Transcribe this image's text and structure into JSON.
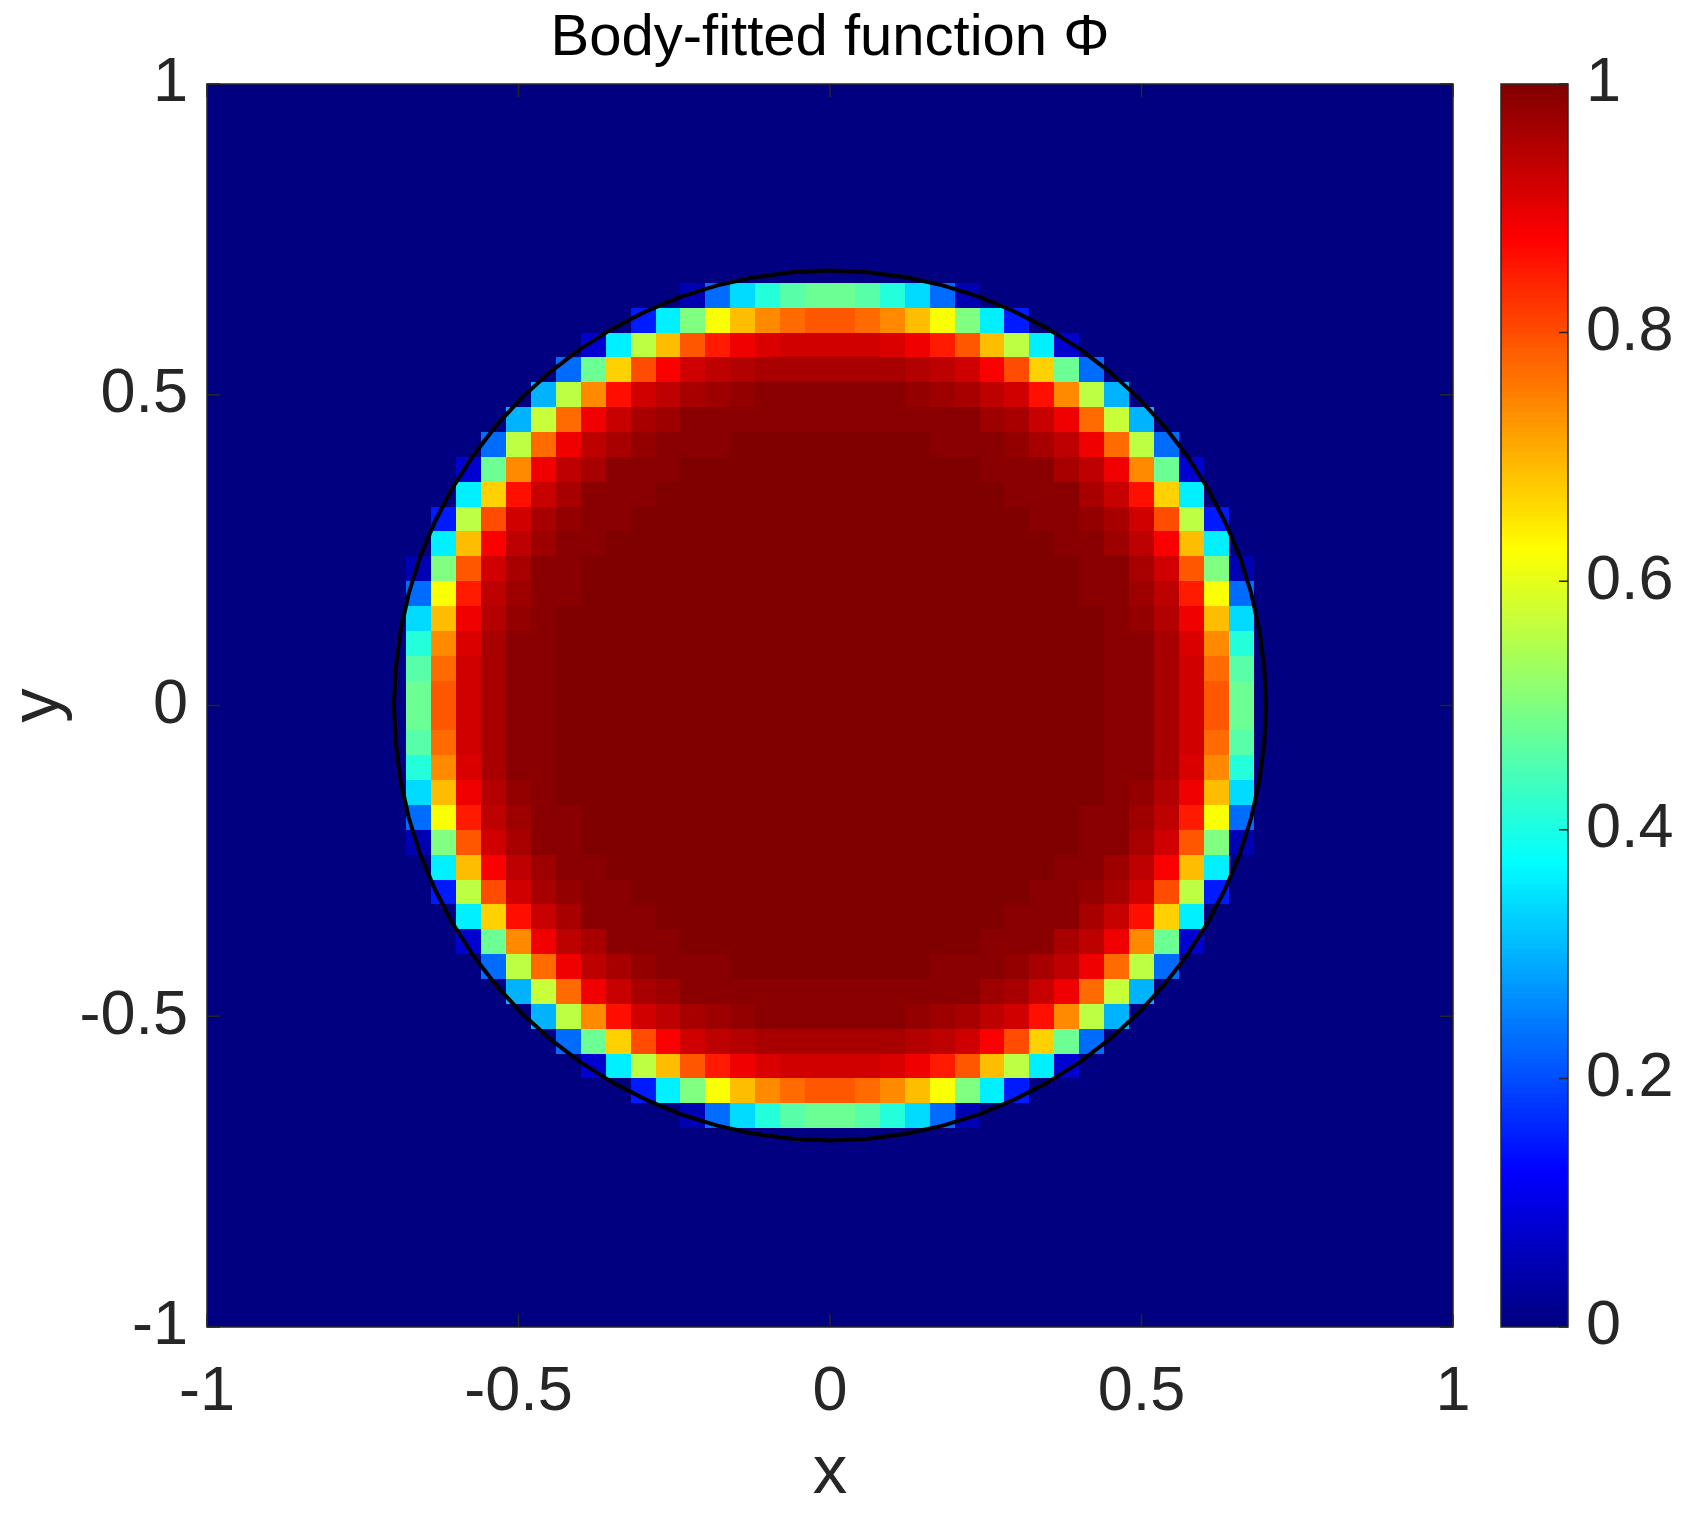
{
  "chart_data": {
    "type": "heatmap",
    "title": "Body-fitted function Φ",
    "xlabel": "x",
    "ylabel": "y",
    "xlim": [
      -1,
      1
    ],
    "ylim": [
      -1,
      1
    ],
    "xticks": [
      -1,
      -0.5,
      0,
      0.5,
      1
    ],
    "yticks": [
      -1,
      -0.5,
      0,
      0.5,
      1
    ],
    "clim": [
      0,
      1
    ],
    "cticks": [
      0,
      0.2,
      0.4,
      0.6,
      0.8,
      1
    ],
    "cells": [
      [
        0,
        0,
        0,
        0,
        0,
        0,
        0,
        0,
        0,
        0,
        0,
        0,
        0,
        0,
        0,
        0,
        0,
        0,
        0,
        0,
        0,
        0,
        0,
        0,
        0,
        0,
        0,
        0,
        0,
        0,
        0,
        0,
        0,
        0,
        0,
        0,
        0,
        0,
        0,
        0,
        0,
        0,
        0,
        0,
        0,
        0,
        0,
        0,
        0,
        0
      ],
      [
        0,
        0,
        0,
        0,
        0,
        0,
        0,
        0,
        0,
        0,
        0,
        0,
        0,
        0,
        0,
        0,
        0,
        0,
        0,
        0,
        0,
        0,
        0,
        0,
        0,
        0,
        0,
        0,
        0,
        0,
        0,
        0,
        0,
        0,
        0,
        0,
        0,
        0,
        0,
        0,
        0,
        0,
        0,
        0,
        0,
        0,
        0,
        0,
        0,
        0
      ],
      [
        0,
        0,
        0,
        0,
        0,
        0,
        0,
        0,
        0,
        0,
        0,
        0,
        0,
        0,
        0,
        0,
        0,
        0,
        0,
        0,
        0,
        0,
        0,
        0,
        0,
        0,
        0,
        0,
        0,
        0,
        0,
        0,
        0,
        0,
        0,
        0,
        0,
        0,
        0,
        0,
        0,
        0,
        0,
        0,
        0,
        0,
        0,
        0,
        0,
        0
      ],
      [
        0,
        0,
        0,
        0,
        0,
        0,
        0,
        0,
        0,
        0,
        0,
        0,
        0,
        0,
        0,
        0,
        0,
        0,
        0,
        0,
        0,
        0,
        0,
        0,
        0,
        0,
        0,
        0,
        0,
        0,
        0,
        0,
        0,
        0,
        0,
        0,
        0,
        0,
        0,
        0,
        0,
        0,
        0,
        0,
        0,
        0,
        0,
        0,
        0,
        0
      ],
      [
        0,
        0,
        0,
        0,
        0,
        0,
        0,
        0,
        0,
        0,
        0,
        0,
        0,
        0,
        0,
        0,
        0,
        0,
        0,
        0,
        0,
        0,
        0,
        0,
        0,
        0,
        0,
        0,
        0,
        0,
        0,
        0,
        0,
        0,
        0,
        0,
        0,
        0,
        0,
        0,
        0,
        0,
        0,
        0,
        0,
        0,
        0,
        0,
        0,
        0
      ],
      [
        0,
        0,
        0,
        0,
        0,
        0,
        0,
        0,
        0,
        0,
        0,
        0,
        0,
        0,
        0,
        0,
        0,
        0,
        0,
        0,
        0,
        0,
        0,
        0,
        0,
        0,
        0,
        0,
        0,
        0,
        0,
        0,
        0,
        0,
        0,
        0,
        0,
        0,
        0,
        0,
        0,
        0,
        0,
        0,
        0,
        0,
        0,
        0,
        0,
        0
      ],
      [
        0,
        0,
        0,
        0,
        0,
        0,
        0,
        0,
        0,
        0,
        0,
        0,
        0,
        0,
        0,
        0,
        0,
        0,
        0,
        0,
        0,
        0,
        0,
        0,
        0,
        0,
        0,
        0,
        0,
        0,
        0,
        0,
        0,
        0,
        0,
        0,
        0,
        0,
        0,
        0,
        0,
        0,
        0,
        0,
        0,
        0,
        0,
        0,
        0,
        0
      ],
      [
        0,
        0,
        0,
        0,
        0,
        0,
        0,
        0,
        0,
        0,
        0,
        0,
        0,
        0,
        0,
        0,
        0,
        0,
        0,
        0,
        0,
        0,
        0,
        0,
        0,
        0,
        0,
        0,
        0,
        0,
        0,
        0,
        0,
        0,
        0,
        0,
        0,
        0,
        0,
        0,
        0,
        0,
        0,
        0,
        0,
        0,
        0,
        0,
        0,
        0
      ],
      [
        0,
        0,
        0,
        0,
        0,
        0,
        0,
        0,
        0,
        0,
        0,
        0,
        0,
        0,
        0,
        0,
        0,
        0,
        0,
        0.05,
        0.23,
        0.34,
        0.41,
        0.46,
        0.48,
        0.48,
        0.46,
        0.41,
        0.34,
        0.23,
        0.05,
        0,
        0,
        0,
        0,
        0,
        0,
        0,
        0,
        0,
        0,
        0,
        0,
        0,
        0,
        0,
        0,
        0,
        0,
        0
      ],
      [
        0,
        0,
        0,
        0,
        0,
        0,
        0,
        0,
        0,
        0,
        0,
        0,
        0,
        0,
        0,
        0,
        0,
        0.15,
        0.36,
        0.5,
        0.62,
        0.69,
        0.74,
        0.77,
        0.79,
        0.79,
        0.77,
        0.74,
        0.69,
        0.62,
        0.5,
        0.36,
        0.15,
        0,
        0,
        0,
        0,
        0,
        0,
        0,
        0,
        0,
        0,
        0,
        0,
        0,
        0,
        0,
        0,
        0
      ],
      [
        0,
        0,
        0,
        0,
        0,
        0,
        0,
        0,
        0,
        0,
        0,
        0,
        0,
        0,
        0,
        0.08,
        0.36,
        0.56,
        0.69,
        0.79,
        0.85,
        0.89,
        0.91,
        0.92,
        0.92,
        0.92,
        0.92,
        0.91,
        0.89,
        0.85,
        0.79,
        0.69,
        0.56,
        0.36,
        0.08,
        0,
        0,
        0,
        0,
        0,
        0,
        0,
        0,
        0,
        0,
        0,
        0,
        0,
        0,
        0
      ],
      [
        0,
        0,
        0,
        0,
        0,
        0,
        0,
        0,
        0,
        0,
        0,
        0,
        0,
        0,
        0.23,
        0.48,
        0.67,
        0.8,
        0.88,
        0.92,
        0.94,
        0.95,
        0.96,
        0.96,
        0.96,
        0.96,
        0.96,
        0.96,
        0.95,
        0.94,
        0.92,
        0.88,
        0.8,
        0.67,
        0.48,
        0.23,
        0,
        0,
        0,
        0,
        0,
        0,
        0,
        0,
        0,
        0,
        0,
        0,
        0,
        0
      ],
      [
        0,
        0,
        0,
        0,
        0,
        0,
        0,
        0,
        0,
        0,
        0,
        0,
        0,
        0.3,
        0.56,
        0.74,
        0.86,
        0.92,
        0.94,
        0.96,
        0.97,
        0.98,
        0.99,
        0.99,
        0.99,
        0.99,
        0.99,
        0.99,
        0.98,
        0.97,
        0.96,
        0.94,
        0.92,
        0.86,
        0.74,
        0.56,
        0.3,
        0,
        0,
        0,
        0,
        0,
        0,
        0,
        0,
        0,
        0,
        0,
        0,
        0
      ],
      [
        0,
        0,
        0,
        0,
        0,
        0,
        0,
        0,
        0,
        0,
        0,
        0,
        0.3,
        0.57,
        0.77,
        0.89,
        0.93,
        0.96,
        0.97,
        0.99,
        0.99,
        0.99,
        0.99,
        0.99,
        0.99,
        0.99,
        0.99,
        0.99,
        0.99,
        0.99,
        0.99,
        0.97,
        0.96,
        0.93,
        0.89,
        0.77,
        0.57,
        0.3,
        0,
        0,
        0,
        0,
        0,
        0,
        0,
        0,
        0,
        0,
        0,
        0
      ],
      [
        0,
        0,
        0,
        0,
        0,
        0,
        0,
        0,
        0,
        0,
        0,
        0.23,
        0.56,
        0.77,
        0.89,
        0.94,
        0.96,
        0.98,
        0.99,
        0.99,
        0.99,
        1,
        1,
        1,
        1,
        1,
        1,
        1,
        1,
        0.99,
        0.99,
        0.99,
        0.98,
        0.96,
        0.94,
        0.89,
        0.77,
        0.56,
        0.23,
        0,
        0,
        0,
        0,
        0,
        0,
        0,
        0,
        0,
        0,
        0
      ],
      [
        0,
        0,
        0,
        0,
        0,
        0,
        0,
        0,
        0,
        0,
        0.08,
        0.48,
        0.74,
        0.89,
        0.94,
        0.96,
        0.99,
        0.99,
        0.99,
        1,
        1,
        1,
        1,
        1,
        1,
        1,
        1,
        1,
        1,
        1,
        1,
        0.99,
        0.99,
        0.99,
        0.96,
        0.94,
        0.89,
        0.74,
        0.48,
        0.08,
        0,
        0,
        0,
        0,
        0,
        0,
        0,
        0,
        0,
        0
      ],
      [
        0,
        0,
        0,
        0,
        0,
        0,
        0,
        0,
        0,
        0,
        0.36,
        0.67,
        0.86,
        0.93,
        0.96,
        0.99,
        0.99,
        0.99,
        1,
        1,
        1,
        1,
        1,
        1,
        1,
        1,
        1,
        1,
        1,
        1,
        1,
        1,
        0.99,
        0.99,
        0.99,
        0.96,
        0.93,
        0.86,
        0.67,
        0.36,
        0,
        0,
        0,
        0,
        0,
        0,
        0,
        0,
        0,
        0
      ],
      [
        0,
        0,
        0,
        0,
        0,
        0,
        0,
        0,
        0,
        0.15,
        0.56,
        0.8,
        0.92,
        0.96,
        0.98,
        0.99,
        0.99,
        1,
        1,
        1,
        1,
        1,
        1,
        1,
        1,
        1,
        1,
        1,
        1,
        1,
        1,
        1,
        1,
        0.99,
        0.99,
        0.98,
        0.96,
        0.92,
        0.8,
        0.56,
        0.15,
        0,
        0,
        0,
        0,
        0,
        0,
        0,
        0,
        0
      ],
      [
        0,
        0,
        0,
        0,
        0,
        0,
        0,
        0,
        0,
        0.36,
        0.69,
        0.88,
        0.94,
        0.97,
        0.99,
        0.99,
        1,
        1,
        1,
        1,
        1,
        1,
        1,
        1,
        1,
        1,
        1,
        1,
        1,
        1,
        1,
        1,
        1,
        1,
        0.99,
        0.99,
        0.97,
        0.94,
        0.88,
        0.69,
        0.36,
        0,
        0,
        0,
        0,
        0,
        0,
        0,
        0,
        0
      ],
      [
        0,
        0,
        0,
        0,
        0,
        0,
        0,
        0,
        0.05,
        0.5,
        0.79,
        0.92,
        0.96,
        0.99,
        0.99,
        1,
        1,
        1,
        1,
        1,
        1,
        1,
        1,
        1,
        1,
        1,
        1,
        1,
        1,
        1,
        1,
        1,
        1,
        1,
        1,
        0.99,
        0.99,
        0.96,
        0.92,
        0.79,
        0.5,
        0.05,
        0,
        0,
        0,
        0,
        0,
        0,
        0,
        0
      ],
      [
        0,
        0,
        0,
        0,
        0,
        0,
        0,
        0,
        0.23,
        0.62,
        0.85,
        0.94,
        0.97,
        0.99,
        0.99,
        1,
        1,
        1,
        1,
        1,
        1,
        1,
        1,
        1,
        1,
        1,
        1,
        1,
        1,
        1,
        1,
        1,
        1,
        1,
        1,
        0.99,
        0.99,
        0.97,
        0.94,
        0.85,
        0.62,
        0.23,
        0,
        0,
        0,
        0,
        0,
        0,
        0,
        0
      ],
      [
        0,
        0,
        0,
        0,
        0,
        0,
        0,
        0,
        0.34,
        0.69,
        0.89,
        0.95,
        0.98,
        0.99,
        1,
        1,
        1,
        1,
        1,
        1,
        1,
        1,
        1,
        1,
        1,
        1,
        1,
        1,
        1,
        1,
        1,
        1,
        1,
        1,
        1,
        1,
        0.99,
        0.98,
        0.95,
        0.89,
        0.69,
        0.34,
        0,
        0,
        0,
        0,
        0,
        0,
        0,
        0
      ],
      [
        0,
        0,
        0,
        0,
        0,
        0,
        0,
        0,
        0.41,
        0.74,
        0.91,
        0.96,
        0.99,
        0.99,
        1,
        1,
        1,
        1,
        1,
        1,
        1,
        1,
        1,
        1,
        1,
        1,
        1,
        1,
        1,
        1,
        1,
        1,
        1,
        1,
        1,
        1,
        0.99,
        0.99,
        0.96,
        0.91,
        0.74,
        0.41,
        0,
        0,
        0,
        0,
        0,
        0,
        0,
        0
      ],
      [
        0,
        0,
        0,
        0,
        0,
        0,
        0,
        0,
        0.46,
        0.77,
        0.92,
        0.96,
        0.99,
        0.99,
        1,
        1,
        1,
        1,
        1,
        1,
        1,
        1,
        1,
        1,
        1,
        1,
        1,
        1,
        1,
        1,
        1,
        1,
        1,
        1,
        1,
        1,
        0.99,
        0.99,
        0.96,
        0.92,
        0.77,
        0.46,
        0,
        0,
        0,
        0,
        0,
        0,
        0,
        0
      ],
      [
        0,
        0,
        0,
        0,
        0,
        0,
        0,
        0,
        0.48,
        0.79,
        0.92,
        0.96,
        0.99,
        0.99,
        1,
        1,
        1,
        1,
        1,
        1,
        1,
        1,
        1,
        1,
        1,
        1,
        1,
        1,
        1,
        1,
        1,
        1,
        1,
        1,
        1,
        1,
        0.99,
        0.99,
        0.96,
        0.92,
        0.79,
        0.48,
        0,
        0,
        0,
        0,
        0,
        0,
        0,
        0
      ],
      [
        0,
        0,
        0,
        0,
        0,
        0,
        0,
        0,
        0.48,
        0.79,
        0.92,
        0.96,
        0.99,
        0.99,
        1,
        1,
        1,
        1,
        1,
        1,
        1,
        1,
        1,
        1,
        1,
        1,
        1,
        1,
        1,
        1,
        1,
        1,
        1,
        1,
        1,
        1,
        0.99,
        0.99,
        0.96,
        0.92,
        0.79,
        0.48,
        0,
        0,
        0,
        0,
        0,
        0,
        0,
        0
      ],
      [
        0,
        0,
        0,
        0,
        0,
        0,
        0,
        0,
        0.46,
        0.77,
        0.92,
        0.96,
        0.99,
        0.99,
        1,
        1,
        1,
        1,
        1,
        1,
        1,
        1,
        1,
        1,
        1,
        1,
        1,
        1,
        1,
        1,
        1,
        1,
        1,
        1,
        1,
        1,
        0.99,
        0.99,
        0.96,
        0.92,
        0.77,
        0.46,
        0,
        0,
        0,
        0,
        0,
        0,
        0,
        0
      ],
      [
        0,
        0,
        0,
        0,
        0,
        0,
        0,
        0,
        0.41,
        0.74,
        0.91,
        0.96,
        0.99,
        0.99,
        1,
        1,
        1,
        1,
        1,
        1,
        1,
        1,
        1,
        1,
        1,
        1,
        1,
        1,
        1,
        1,
        1,
        1,
        1,
        1,
        1,
        1,
        0.99,
        0.99,
        0.96,
        0.91,
        0.74,
        0.41,
        0,
        0,
        0,
        0,
        0,
        0,
        0,
        0
      ],
      [
        0,
        0,
        0,
        0,
        0,
        0,
        0,
        0,
        0.34,
        0.69,
        0.89,
        0.95,
        0.98,
        0.99,
        1,
        1,
        1,
        1,
        1,
        1,
        1,
        1,
        1,
        1,
        1,
        1,
        1,
        1,
        1,
        1,
        1,
        1,
        1,
        1,
        1,
        1,
        0.99,
        0.98,
        0.95,
        0.89,
        0.69,
        0.34,
        0,
        0,
        0,
        0,
        0,
        0,
        0,
        0
      ],
      [
        0,
        0,
        0,
        0,
        0,
        0,
        0,
        0,
        0.23,
        0.62,
        0.85,
        0.94,
        0.97,
        0.99,
        0.99,
        1,
        1,
        1,
        1,
        1,
        1,
        1,
        1,
        1,
        1,
        1,
        1,
        1,
        1,
        1,
        1,
        1,
        1,
        1,
        1,
        0.99,
        0.99,
        0.97,
        0.94,
        0.85,
        0.62,
        0.23,
        0,
        0,
        0,
        0,
        0,
        0,
        0,
        0
      ],
      [
        0,
        0,
        0,
        0,
        0,
        0,
        0,
        0,
        0.05,
        0.5,
        0.79,
        0.92,
        0.96,
        0.99,
        0.99,
        1,
        1,
        1,
        1,
        1,
        1,
        1,
        1,
        1,
        1,
        1,
        1,
        1,
        1,
        1,
        1,
        1,
        1,
        1,
        1,
        0.99,
        0.99,
        0.96,
        0.92,
        0.79,
        0.5,
        0.05,
        0,
        0,
        0,
        0,
        0,
        0,
        0,
        0
      ],
      [
        0,
        0,
        0,
        0,
        0,
        0,
        0,
        0,
        0,
        0.36,
        0.69,
        0.88,
        0.94,
        0.97,
        0.99,
        0.99,
        1,
        1,
        1,
        1,
        1,
        1,
        1,
        1,
        1,
        1,
        1,
        1,
        1,
        1,
        1,
        1,
        1,
        1,
        0.99,
        0.99,
        0.97,
        0.94,
        0.88,
        0.69,
        0.36,
        0,
        0,
        0,
        0,
        0,
        0,
        0,
        0,
        0
      ],
      [
        0,
        0,
        0,
        0,
        0,
        0,
        0,
        0,
        0,
        0.15,
        0.56,
        0.8,
        0.92,
        0.96,
        0.98,
        0.99,
        0.99,
        1,
        1,
        1,
        1,
        1,
        1,
        1,
        1,
        1,
        1,
        1,
        1,
        1,
        1,
        1,
        1,
        0.99,
        0.99,
        0.98,
        0.96,
        0.92,
        0.8,
        0.56,
        0.15,
        0,
        0,
        0,
        0,
        0,
        0,
        0,
        0,
        0
      ],
      [
        0,
        0,
        0,
        0,
        0,
        0,
        0,
        0,
        0,
        0,
        0.36,
        0.67,
        0.86,
        0.93,
        0.96,
        0.99,
        0.99,
        0.99,
        1,
        1,
        1,
        1,
        1,
        1,
        1,
        1,
        1,
        1,
        1,
        1,
        1,
        1,
        0.99,
        0.99,
        0.99,
        0.96,
        0.93,
        0.86,
        0.67,
        0.36,
        0,
        0,
        0,
        0,
        0,
        0,
        0,
        0,
        0,
        0
      ],
      [
        0,
        0,
        0,
        0,
        0,
        0,
        0,
        0,
        0,
        0,
        0.08,
        0.48,
        0.74,
        0.89,
        0.94,
        0.96,
        0.99,
        0.99,
        0.99,
        1,
        1,
        1,
        1,
        1,
        1,
        1,
        1,
        1,
        1,
        1,
        1,
        0.99,
        0.99,
        0.99,
        0.96,
        0.94,
        0.89,
        0.74,
        0.48,
        0.08,
        0,
        0,
        0,
        0,
        0,
        0,
        0,
        0,
        0,
        0
      ],
      [
        0,
        0,
        0,
        0,
        0,
        0,
        0,
        0,
        0,
        0,
        0,
        0.23,
        0.56,
        0.77,
        0.89,
        0.94,
        0.96,
        0.98,
        0.99,
        0.99,
        0.99,
        1,
        1,
        1,
        1,
        1,
        1,
        1,
        1,
        0.99,
        0.99,
        0.99,
        0.98,
        0.96,
        0.94,
        0.89,
        0.77,
        0.56,
        0.23,
        0,
        0,
        0,
        0,
        0,
        0,
        0,
        0,
        0,
        0,
        0
      ],
      [
        0,
        0,
        0,
        0,
        0,
        0,
        0,
        0,
        0,
        0,
        0,
        0,
        0.3,
        0.57,
        0.77,
        0.89,
        0.93,
        0.96,
        0.97,
        0.99,
        0.99,
        0.99,
        0.99,
        0.99,
        0.99,
        0.99,
        0.99,
        0.99,
        0.99,
        0.99,
        0.99,
        0.97,
        0.96,
        0.93,
        0.89,
        0.77,
        0.57,
        0.3,
        0,
        0,
        0,
        0,
        0,
        0,
        0,
        0,
        0,
        0,
        0,
        0
      ],
      [
        0,
        0,
        0,
        0,
        0,
        0,
        0,
        0,
        0,
        0,
        0,
        0,
        0,
        0.3,
        0.56,
        0.74,
        0.86,
        0.92,
        0.94,
        0.96,
        0.97,
        0.98,
        0.99,
        0.99,
        0.99,
        0.99,
        0.99,
        0.99,
        0.98,
        0.97,
        0.96,
        0.94,
        0.92,
        0.86,
        0.74,
        0.56,
        0.3,
        0,
        0,
        0,
        0,
        0,
        0,
        0,
        0,
        0,
        0,
        0,
        0,
        0
      ],
      [
        0,
        0,
        0,
        0,
        0,
        0,
        0,
        0,
        0,
        0,
        0,
        0,
        0,
        0,
        0.23,
        0.48,
        0.67,
        0.8,
        0.88,
        0.92,
        0.94,
        0.95,
        0.96,
        0.96,
        0.96,
        0.96,
        0.96,
        0.96,
        0.95,
        0.94,
        0.92,
        0.88,
        0.8,
        0.67,
        0.48,
        0.23,
        0,
        0,
        0,
        0,
        0,
        0,
        0,
        0,
        0,
        0,
        0,
        0,
        0,
        0
      ],
      [
        0,
        0,
        0,
        0,
        0,
        0,
        0,
        0,
        0,
        0,
        0,
        0,
        0,
        0,
        0,
        0.08,
        0.36,
        0.56,
        0.69,
        0.79,
        0.85,
        0.89,
        0.91,
        0.92,
        0.92,
        0.92,
        0.92,
        0.91,
        0.89,
        0.85,
        0.79,
        0.69,
        0.56,
        0.36,
        0.08,
        0,
        0,
        0,
        0,
        0,
        0,
        0,
        0,
        0,
        0,
        0,
        0,
        0,
        0,
        0
      ],
      [
        0,
        0,
        0,
        0,
        0,
        0,
        0,
        0,
        0,
        0,
        0,
        0,
        0,
        0,
        0,
        0,
        0,
        0.15,
        0.36,
        0.5,
        0.62,
        0.69,
        0.74,
        0.77,
        0.79,
        0.79,
        0.77,
        0.74,
        0.69,
        0.62,
        0.5,
        0.36,
        0.15,
        0,
        0,
        0,
        0,
        0,
        0,
        0,
        0,
        0,
        0,
        0,
        0,
        0,
        0,
        0,
        0,
        0
      ],
      [
        0,
        0,
        0,
        0,
        0,
        0,
        0,
        0,
        0,
        0,
        0,
        0,
        0,
        0,
        0,
        0,
        0,
        0,
        0,
        0.05,
        0.23,
        0.34,
        0.41,
        0.46,
        0.48,
        0.48,
        0.46,
        0.41,
        0.34,
        0.23,
        0.05,
        0,
        0,
        0,
        0,
        0,
        0,
        0,
        0,
        0,
        0,
        0,
        0,
        0,
        0,
        0,
        0,
        0,
        0,
        0
      ],
      [
        0,
        0,
        0,
        0,
        0,
        0,
        0,
        0,
        0,
        0,
        0,
        0,
        0,
        0,
        0,
        0,
        0,
        0,
        0,
        0,
        0,
        0,
        0,
        0,
        0,
        0,
        0,
        0,
        0,
        0,
        0,
        0,
        0,
        0,
        0,
        0,
        0,
        0,
        0,
        0,
        0,
        0,
        0,
        0,
        0,
        0,
        0,
        0,
        0,
        0
      ],
      [
        0,
        0,
        0,
        0,
        0,
        0,
        0,
        0,
        0,
        0,
        0,
        0,
        0,
        0,
        0,
        0,
        0,
        0,
        0,
        0,
        0,
        0,
        0,
        0,
        0,
        0,
        0,
        0,
        0,
        0,
        0,
        0,
        0,
        0,
        0,
        0,
        0,
        0,
        0,
        0,
        0,
        0,
        0,
        0,
        0,
        0,
        0,
        0,
        0,
        0
      ],
      [
        0,
        0,
        0,
        0,
        0,
        0,
        0,
        0,
        0,
        0,
        0,
        0,
        0,
        0,
        0,
        0,
        0,
        0,
        0,
        0,
        0,
        0,
        0,
        0,
        0,
        0,
        0,
        0,
        0,
        0,
        0,
        0,
        0,
        0,
        0,
        0,
        0,
        0,
        0,
        0,
        0,
        0,
        0,
        0,
        0,
        0,
        0,
        0,
        0,
        0
      ],
      [
        0,
        0,
        0,
        0,
        0,
        0,
        0,
        0,
        0,
        0,
        0,
        0,
        0,
        0,
        0,
        0,
        0,
        0,
        0,
        0,
        0,
        0,
        0,
        0,
        0,
        0,
        0,
        0,
        0,
        0,
        0,
        0,
        0,
        0,
        0,
        0,
        0,
        0,
        0,
        0,
        0,
        0,
        0,
        0,
        0,
        0,
        0,
        0,
        0,
        0
      ],
      [
        0,
        0,
        0,
        0,
        0,
        0,
        0,
        0,
        0,
        0,
        0,
        0,
        0,
        0,
        0,
        0,
        0,
        0,
        0,
        0,
        0,
        0,
        0,
        0,
        0,
        0,
        0,
        0,
        0,
        0,
        0,
        0,
        0,
        0,
        0,
        0,
        0,
        0,
        0,
        0,
        0,
        0,
        0,
        0,
        0,
        0,
        0,
        0,
        0,
        0
      ],
      [
        0,
        0,
        0,
        0,
        0,
        0,
        0,
        0,
        0,
        0,
        0,
        0,
        0,
        0,
        0,
        0,
        0,
        0,
        0,
        0,
        0,
        0,
        0,
        0,
        0,
        0,
        0,
        0,
        0,
        0,
        0,
        0,
        0,
        0,
        0,
        0,
        0,
        0,
        0,
        0,
        0,
        0,
        0,
        0,
        0,
        0,
        0,
        0,
        0,
        0
      ],
      [
        0,
        0,
        0,
        0,
        0,
        0,
        0,
        0,
        0,
        0,
        0,
        0,
        0,
        0,
        0,
        0,
        0,
        0,
        0,
        0,
        0,
        0,
        0,
        0,
        0,
        0,
        0,
        0,
        0,
        0,
        0,
        0,
        0,
        0,
        0,
        0,
        0,
        0,
        0,
        0,
        0,
        0,
        0,
        0,
        0,
        0,
        0,
        0,
        0,
        0
      ],
      [
        0,
        0,
        0,
        0,
        0,
        0,
        0,
        0,
        0,
        0,
        0,
        0,
        0,
        0,
        0,
        0,
        0,
        0,
        0,
        0,
        0,
        0,
        0,
        0,
        0,
        0,
        0,
        0,
        0,
        0,
        0,
        0,
        0,
        0,
        0,
        0,
        0,
        0,
        0,
        0,
        0,
        0,
        0,
        0,
        0,
        0,
        0,
        0,
        0,
        0
      ]
    ],
    "series": [
      {
        "type": "line",
        "color": "#000000",
        "x": [
          -0.7,
          -0.697,
          -0.689,
          -0.676,
          -0.658,
          -0.634,
          -0.606,
          -0.573,
          -0.536,
          -0.495,
          -0.45,
          -0.402,
          -0.35,
          -0.296,
          -0.239,
          -0.181,
          -0.122,
          -0.061,
          0,
          0.061,
          0.122,
          0.181,
          0.239,
          0.296,
          0.35,
          0.402,
          0.45,
          0.495,
          0.536,
          0.573,
          0.606,
          0.634,
          0.658,
          0.676,
          0.689,
          0.697,
          0.7
        ],
        "values": [
          0,
          0.061,
          0.122,
          0.181,
          0.239,
          0.296,
          0.35,
          0.402,
          0.45,
          0.495,
          0.536,
          0.573,
          0.606,
          0.634,
          0.658,
          0.676,
          0.689,
          0.697,
          0.7,
          0.697,
          0.689,
          0.676,
          0.658,
          0.634,
          0.606,
          0.573,
          0.536,
          0.495,
          0.45,
          0.402,
          0.35,
          0.296,
          0.239,
          0.181,
          0.122,
          0.061,
          0
        ]
      },
      {
        "type": "line",
        "color": "#000000",
        "x": [
          -0.7,
          -0.697,
          -0.689,
          -0.676,
          -0.658,
          -0.634,
          -0.606,
          -0.573,
          -0.536,
          -0.495,
          -0.45,
          -0.402,
          -0.35,
          -0.296,
          -0.239,
          -0.181,
          -0.122,
          -0.061,
          0,
          0.061,
          0.122,
          0.181,
          0.239,
          0.296,
          0.35,
          0.402,
          0.45,
          0.495,
          0.536,
          0.573,
          0.606,
          0.634,
          0.658,
          0.676,
          0.689,
          0.697,
          0.7
        ],
        "values": [
          0,
          -0.061,
          -0.122,
          -0.181,
          -0.239,
          -0.296,
          -0.35,
          -0.402,
          -0.45,
          -0.495,
          -0.536,
          -0.573,
          -0.606,
          -0.634,
          -0.658,
          -0.676,
          -0.689,
          -0.697,
          -0.7,
          -0.697,
          -0.689,
          -0.676,
          -0.658,
          -0.634,
          -0.606,
          -0.573,
          -0.536,
          -0.495,
          -0.45,
          -0.402,
          -0.35,
          -0.296,
          -0.239,
          -0.181,
          -0.122,
          -0.061,
          0
        ]
      }
    ]
  }
}
